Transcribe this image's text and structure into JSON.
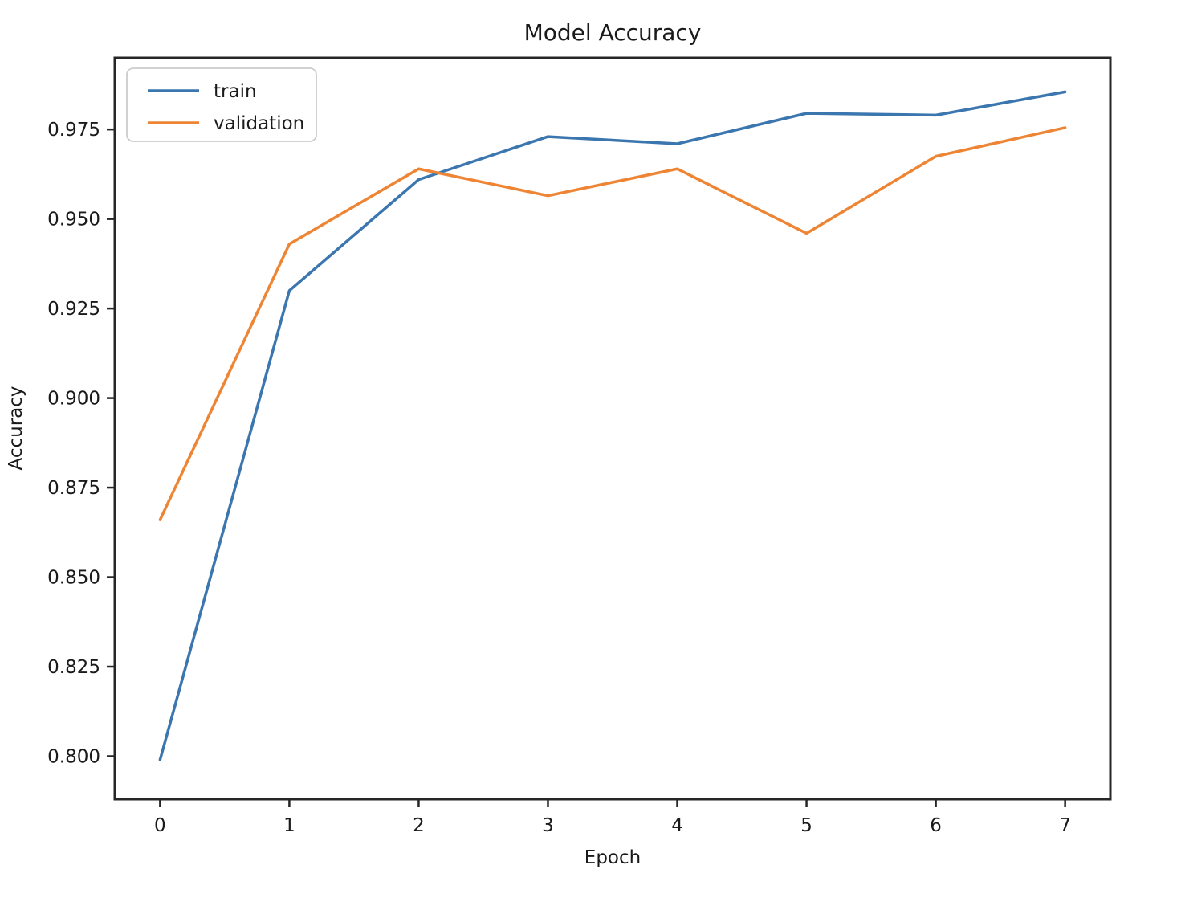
{
  "chart_data": {
    "type": "line",
    "title": "Model Accuracy",
    "xlabel": "Epoch",
    "ylabel": "Accuracy",
    "x": [
      0,
      1,
      2,
      3,
      4,
      5,
      6,
      7
    ],
    "series": [
      {
        "name": "train",
        "color": "#3b76af",
        "values": [
          0.799,
          0.93,
          0.961,
          0.973,
          0.971,
          0.9795,
          0.979,
          0.9855
        ]
      },
      {
        "name": "validation",
        "color": "#ee8535",
        "values": [
          0.866,
          0.943,
          0.964,
          0.9565,
          0.964,
          0.946,
          0.9675,
          0.9755
        ]
      }
    ],
    "xticks": [
      0,
      1,
      2,
      3,
      4,
      5,
      6,
      7
    ],
    "yticks": [
      0.8,
      0.825,
      0.85,
      0.875,
      0.9,
      0.925,
      0.95,
      0.975
    ],
    "xlim": [
      -0.35,
      7.35
    ],
    "ylim": [
      0.788,
      0.995
    ],
    "grid": false,
    "legend_position": "upper left",
    "background_color": "#ffffff",
    "axis_color": "#262626",
    "text_color": "#1a1a1a",
    "legend_border_color": "#cccccc"
  }
}
